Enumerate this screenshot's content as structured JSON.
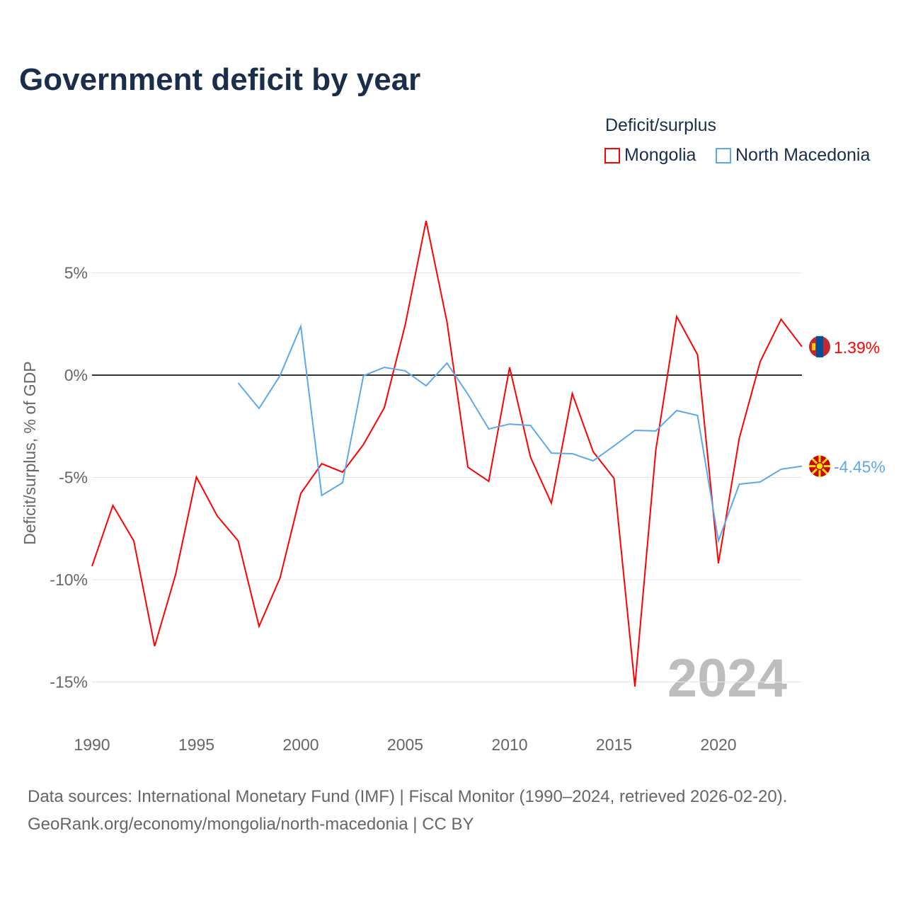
{
  "title": "Government deficit by year",
  "legend": {
    "title": "Deficit/surplus",
    "items": [
      {
        "label": "Mongolia",
        "color": "#ff0000"
      },
      {
        "label": "North Macedonia",
        "color": "#5ba8ec"
      }
    ]
  },
  "footer": {
    "line1": "Data sources: International Monetary Fund (IMF) | Fiscal Monitor (1990–2024, retrieved 2026-02-20).",
    "line2": "GeoRank.org/economy/mongolia/north-macedonia | CC BY"
  },
  "chart_data": {
    "type": "line",
    "title": "Government deficit by year",
    "ylabel": "Deficit/surplus, % of GDP",
    "xlabel": "",
    "xlim": [
      1990,
      2024
    ],
    "ylim": [
      -17,
      8
    ],
    "yticks": [
      5,
      0,
      -5,
      -10,
      -15
    ],
    "ytick_labels": [
      "5%",
      "0%",
      "-5%",
      "-10%",
      "-15%"
    ],
    "xticks": [
      1990,
      1995,
      2000,
      2005,
      2010,
      2015,
      2020
    ],
    "xtick_labels": [
      "1990",
      "1995",
      "2000",
      "2005",
      "2010",
      "2015",
      "2020"
    ],
    "year_watermark": "2024",
    "series": [
      {
        "name": "Mongolia",
        "color": "#ff0000",
        "end_label": "1.39%",
        "x_start": 1990,
        "values": [
          -9.34,
          -6.37,
          -8.1,
          -13.25,
          -9.76,
          -4.98,
          -6.89,
          -8.1,
          -12.28,
          -9.93,
          -5.78,
          -4.33,
          -4.74,
          -3.39,
          -1.59,
          2.46,
          7.54,
          2.6,
          -4.5,
          -5.19,
          0.38,
          -4.01,
          -6.26,
          -0.9,
          -3.74,
          -5.05,
          -15.22,
          -3.67,
          2.87,
          1.0,
          -9.2,
          -3.08,
          0.66,
          2.73,
          1.39
        ]
      },
      {
        "name": "North Macedonia",
        "color": "#5ba8ec",
        "end_label": "-4.45%",
        "x_start": 1997,
        "values": [
          -0.38,
          -1.63,
          -0.03,
          2.39,
          -5.88,
          -5.26,
          -0.03,
          0.38,
          0.21,
          -0.52,
          0.59,
          -0.93,
          -2.63,
          -2.39,
          -2.46,
          -3.81,
          -3.84,
          -4.19,
          -3.46,
          -2.7,
          -2.73,
          -1.73,
          -1.97,
          -8.1,
          -5.33,
          -5.22,
          -4.6,
          -4.45
        ]
      }
    ]
  }
}
